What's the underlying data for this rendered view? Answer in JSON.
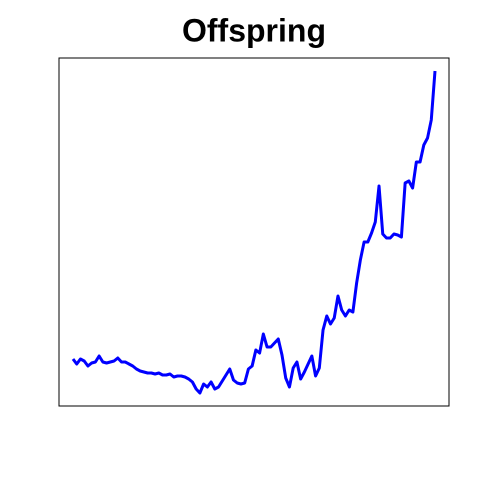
{
  "chart_data": {
    "type": "line",
    "title": "Offspring",
    "color": "#0000ff",
    "ylim": [
      0,
      348
    ],
    "values": [
      47,
      42,
      47,
      45,
      40,
      43,
      44,
      50,
      44,
      43,
      44,
      45,
      48,
      44,
      44,
      42,
      40,
      37,
      35,
      34,
      33,
      33,
      32,
      33,
      31,
      31,
      32,
      29,
      30,
      30,
      29,
      27,
      24,
      17,
      13,
      22,
      19,
      24,
      17,
      19,
      25,
      31,
      37,
      26,
      23,
      22,
      23,
      37,
      40,
      56,
      53,
      72,
      59,
      59,
      63,
      67,
      51,
      28,
      19,
      38,
      44,
      27,
      34,
      42,
      50,
      30,
      38,
      76,
      90,
      82,
      88,
      110,
      96,
      90,
      96,
      94,
      123,
      146,
      164,
      164,
      173,
      184,
      220,
      172,
      168,
      168,
      172,
      171,
      169,
      223,
      225,
      218,
      244,
      244,
      261,
      268,
      286,
      335
    ]
  }
}
